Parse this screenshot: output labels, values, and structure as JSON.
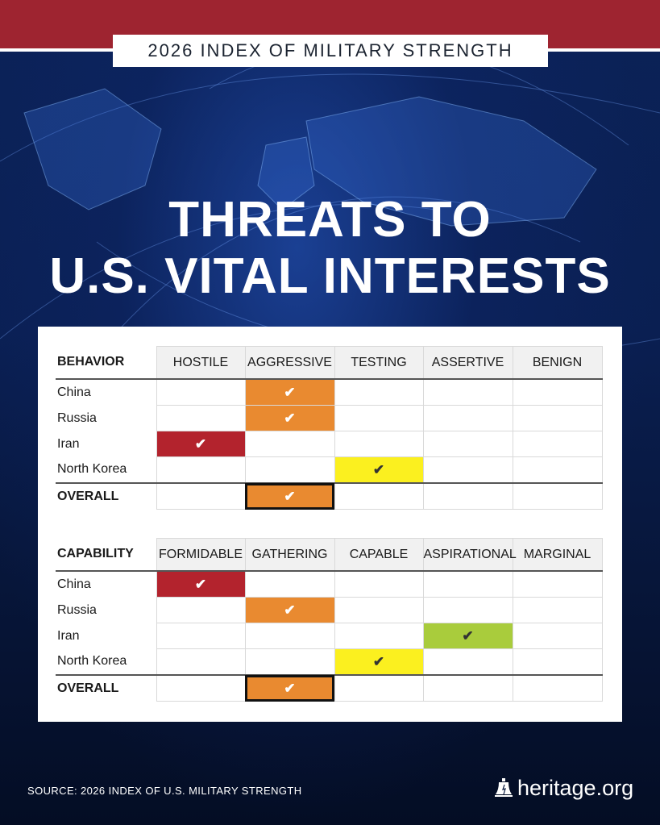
{
  "header": {
    "label": "2026 INDEX OF MILITARY STRENGTH"
  },
  "title": {
    "line1": "THREATS TO",
    "line2": "U.S. VITAL INTERESTS"
  },
  "behavior": {
    "label": "BEHAVIOR",
    "columns": [
      "HOSTILE",
      "AGGRESSIVE",
      "TESTING",
      "ASSERTIVE",
      "BENIGN"
    ],
    "rows": [
      {
        "label": "China",
        "value": "AGGRESSIVE"
      },
      {
        "label": "Russia",
        "value": "AGGRESSIVE"
      },
      {
        "label": "Iran",
        "value": "HOSTILE"
      },
      {
        "label": "North Korea",
        "value": "TESTING"
      },
      {
        "label": "OVERALL",
        "value": "AGGRESSIVE"
      }
    ]
  },
  "capability": {
    "label": "CAPABILITY",
    "columns": [
      "FORMIDABLE",
      "GATHERING",
      "CAPABLE",
      "ASPIRATIONAL",
      "MARGINAL"
    ],
    "rows": [
      {
        "label": "China",
        "value": "FORMIDABLE"
      },
      {
        "label": "Russia",
        "value": "GATHERING"
      },
      {
        "label": "Iran",
        "value": "ASPIRATIONAL"
      },
      {
        "label": "North Korea",
        "value": "CAPABLE"
      },
      {
        "label": "OVERALL",
        "value": "GATHERING"
      }
    ]
  },
  "check_mark": "✔",
  "colors": {
    "red": "#b3232d",
    "orange": "#e98a30",
    "yellow": "#fbf01f",
    "green": "#a9cc3c",
    "banner": "#9e2430"
  },
  "footer": {
    "source": "SOURCE: 2026 INDEX OF U.S. MILITARY STRENGTH",
    "brand": "heritage.org",
    "brand_icon": "liberty-bell-icon"
  }
}
